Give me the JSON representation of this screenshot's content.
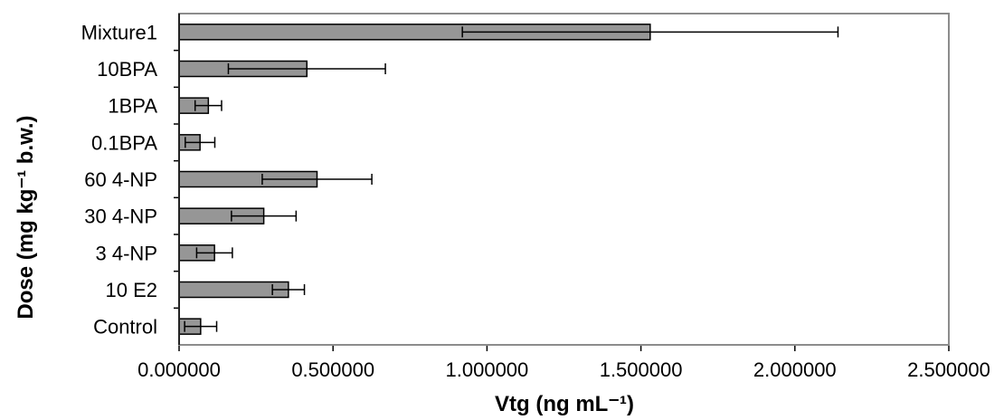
{
  "chart_data": {
    "type": "bar",
    "orientation": "horizontal",
    "categories": [
      "Mixture1",
      "10BPA",
      "1BPA",
      "0.1BPA",
      "60 4-NP",
      "30 4-NP",
      "3 4-NP",
      "10 E2",
      "Control"
    ],
    "values": [
      1.53,
      0.415,
      0.095,
      0.068,
      0.448,
      0.275,
      0.115,
      0.355,
      0.07
    ],
    "error": [
      0.61,
      0.255,
      0.043,
      0.048,
      0.178,
      0.105,
      0.058,
      0.052,
      0.052
    ],
    "xlim": [
      0,
      2.5
    ],
    "xticks": [
      "0.000000",
      "0.500000",
      "1.000000",
      "1.500000",
      "2.000000",
      "2.500000"
    ],
    "xtick_values": [
      0,
      0.5,
      1.0,
      1.5,
      2.0,
      2.5
    ],
    "xlabel": "Vtg (ng mL⁻¹)",
    "ylabel": "Dose (mg kg⁻¹ b.w.)",
    "bar_color": "#969696",
    "plot_border_color": "#8c8c8c",
    "grid": false,
    "legend": false
  }
}
